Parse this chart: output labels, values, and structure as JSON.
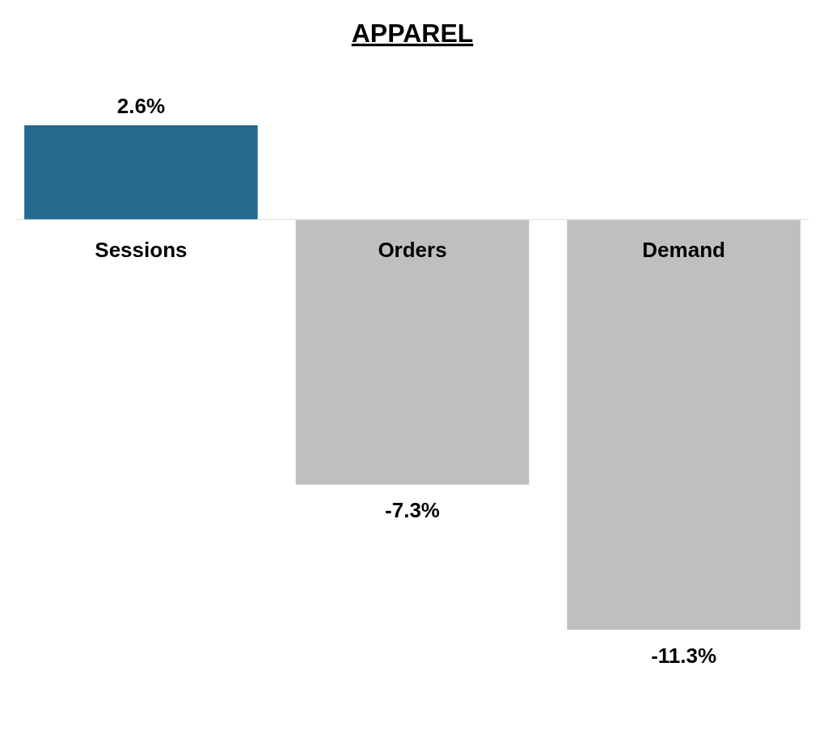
{
  "chart_data": {
    "type": "bar",
    "title": "APPAREL",
    "categories": [
      "Sessions",
      "Orders",
      "Demand"
    ],
    "values": [
      2.6,
      -7.3,
      -11.3
    ],
    "colors": [
      "#236a8e",
      "#bfbfbf",
      "#bfbfbf"
    ],
    "value_labels": [
      "2.6%",
      "-7.3%",
      "-11.3%"
    ]
  }
}
